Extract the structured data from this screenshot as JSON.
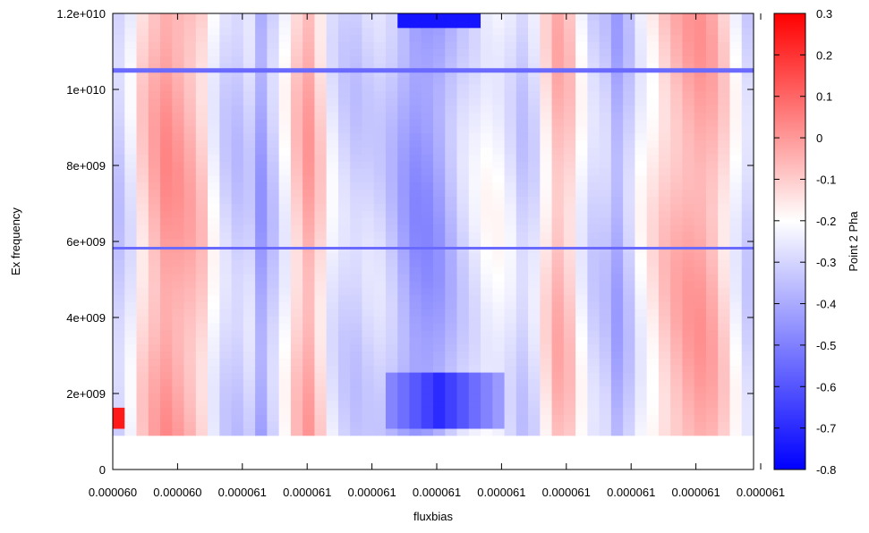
{
  "chart_data": {
    "type": "heatmap",
    "xlabel": "fluxbias",
    "ylabel": "Ex frequency",
    "colorbar_label": "Point 2 Pha",
    "x_tick_labels": [
      "0.000060",
      "0.000060",
      "0.000061",
      "0.000061",
      "0.000061",
      "0.000061",
      "0.000061",
      "0.000061",
      "0.000061",
      "0.000061",
      "0.000061"
    ],
    "y_tick_labels": [
      "0",
      "2e+009",
      "4e+009",
      "6e+009",
      "8e+009",
      "1e+010",
      "1.2e+010"
    ],
    "colorbar_tick_labels": [
      "0.3",
      "0.2",
      "0.1",
      "0",
      "-0.1",
      "-0.2",
      "-0.3",
      "-0.4",
      "-0.5",
      "-0.6",
      "-0.7",
      "-0.8"
    ],
    "ylim": [
      0,
      12000000000
    ],
    "zlim": [
      -0.8,
      0.3
    ],
    "data_y_range": [
      900000000,
      12000000000
    ],
    "colormap": [
      "#0000ff",
      "#ffffff",
      "#ff0000"
    ],
    "x_profile": [
      -0.32,
      -0.25,
      -0.12,
      -0.05,
      0.0,
      -0.02,
      -0.05,
      -0.1,
      -0.22,
      -0.3,
      -0.33,
      -0.3,
      -0.42,
      -0.32,
      -0.22,
      -0.1,
      -0.03,
      -0.12,
      -0.25,
      -0.3,
      -0.32,
      -0.3,
      -0.3,
      -0.34,
      -0.4,
      -0.45,
      -0.45,
      -0.42,
      -0.36,
      -0.3,
      -0.26,
      -0.22,
      -0.22,
      -0.26,
      -0.32,
      -0.28,
      -0.15,
      -0.06,
      -0.1,
      -0.22,
      -0.3,
      -0.32,
      -0.4,
      -0.32,
      -0.22,
      -0.16,
      -0.1,
      -0.06,
      -0.03,
      -0.02,
      -0.05,
      -0.12,
      -0.22,
      -0.3
    ],
    "features": {
      "line_1_05e10": {
        "y": 10500000000,
        "value": -0.55
      },
      "line_5_8e9": {
        "y": 5800000000,
        "value": -0.55
      },
      "bottom_dip": {
        "y_range": [
          1000000000,
          2600000000
        ],
        "value": -0.7
      },
      "top_dip": {
        "y_range": [
          11700000000,
          12000000000
        ],
        "value": -0.75
      },
      "left_edge_spot": {
        "y_range": [
          1100000000,
          1600000000
        ],
        "value": 0.25
      }
    }
  }
}
